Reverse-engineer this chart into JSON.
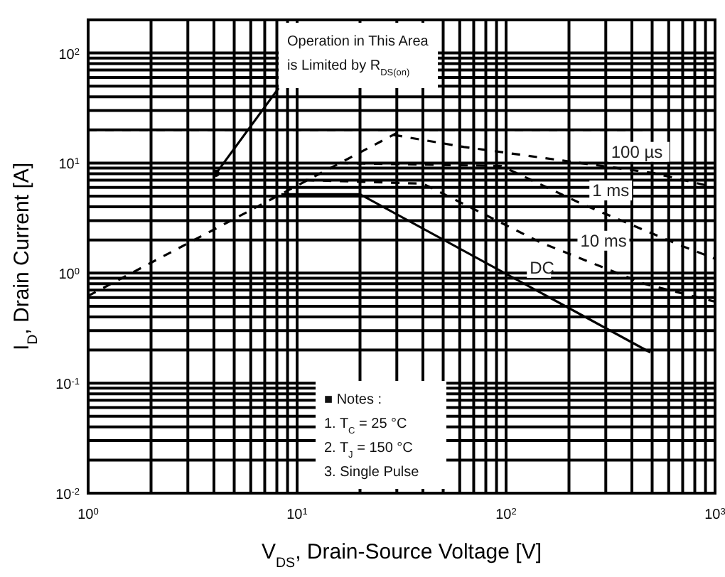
{
  "chart_data": {
    "type": "line",
    "xlabel": "V$_{DS}$, Drain-Source Voltage [V]",
    "ylabel": "I$_{D}$, Drain Current [A]",
    "log": "xy",
    "grid": true,
    "xlim": [
      1,
      1000
    ],
    "ylim": [
      0.01,
      200
    ],
    "xticks": [
      {
        "value": 1,
        "label": "10$^{0}$"
      },
      {
        "value": 10,
        "label": "10$^{1}$"
      },
      {
        "value": 100,
        "label": "10$^{2}$"
      },
      {
        "value": 1000,
        "label": "10$^{3}$"
      }
    ],
    "yticks": [
      {
        "value": 0.01,
        "label": "10$^{-2}$"
      },
      {
        "value": 0.1,
        "label": "10$^{-1}$"
      },
      {
        "value": 1,
        "label": "10$^{0}$"
      },
      {
        "value": 10,
        "label": "10$^{1}$"
      },
      {
        "value": 100,
        "label": "10$^{2}$"
      }
    ],
    "series": [
      {
        "color": "#000000",
        "line_style": "dashed",
        "x": [
          1,
          32
        ],
        "values": [
          0.62,
          20
        ]
      },
      {
        "color": "#000000",
        "line_style": "dashed",
        "x": [
          1,
          470
        ],
        "values": [
          20,
          20
        ]
      },
      {
        "name": "100 µs",
        "color": "#000000",
        "line_style": "dashed",
        "x": [
          29,
          63,
          510,
          1000
        ],
        "values": [
          18,
          14,
          8.1,
          6
        ]
      },
      {
        "name": "1 ms",
        "color": "#000000",
        "line_style": "dashed",
        "x": [
          16,
          95,
          234,
          676,
          1000
        ],
        "values": [
          10,
          9.4,
          4.2,
          1.8,
          1.35
        ]
      },
      {
        "name": "10 ms",
        "color": "#000000",
        "line_style": "dashed",
        "x": [
          11,
          40,
          146,
          457,
          1000
        ],
        "values": [
          7,
          6.5,
          1.9,
          0.8,
          0.55
        ]
      },
      {
        "name": "DC",
        "color": "#000000",
        "line_style": "solid",
        "x": [
          8.4,
          20,
          490
        ],
        "values": [
          5.2,
          5.2,
          0.19
        ]
      }
    ],
    "annotations": [
      "Operation in This Area\nis Limited by R$_{DS(on)}$",
      "■ Notes :\n1. T$_{C}$ = 25 °C\n2. T$_{J}$ = 150 °C\n3. Single Pulse"
    ]
  }
}
